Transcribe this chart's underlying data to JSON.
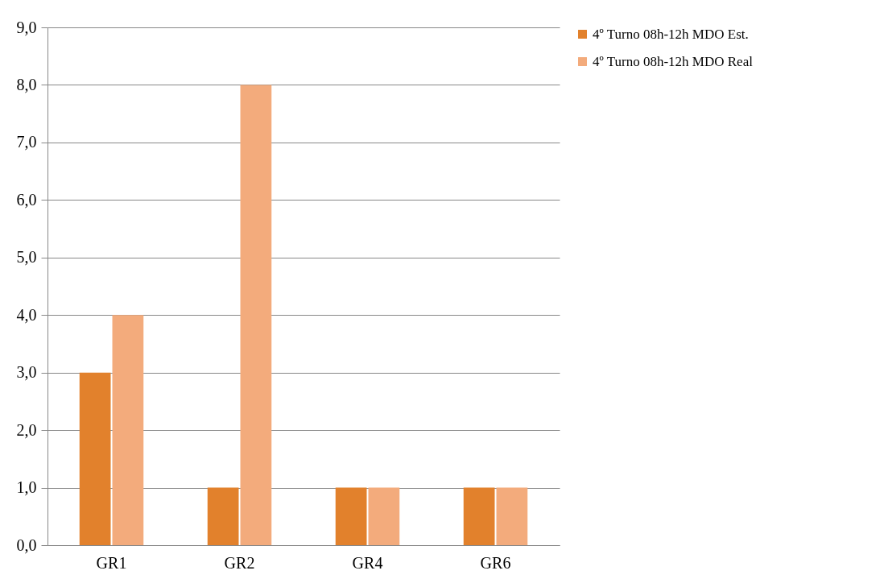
{
  "chart_data": {
    "type": "bar",
    "categories": [
      "GR1",
      "GR2",
      "GR4",
      "GR6"
    ],
    "series": [
      {
        "name": "4º Turno 08h-12h MDO Est.",
        "color": "#e2812c",
        "values": [
          3,
          1,
          1,
          1
        ]
      },
      {
        "name": "4º Turno 08h-12h MDO Real",
        "color": "#f3ab7c",
        "values": [
          4,
          8,
          1,
          1
        ]
      }
    ],
    "ylim": [
      0,
      9
    ],
    "yticks": [
      {
        "value": 0,
        "label": "0,0"
      },
      {
        "value": 1,
        "label": "1,0"
      },
      {
        "value": 2,
        "label": "2,0"
      },
      {
        "value": 3,
        "label": "3,0"
      },
      {
        "value": 4,
        "label": "4,0"
      },
      {
        "value": 5,
        "label": "5,0"
      },
      {
        "value": 6,
        "label": "6,0"
      },
      {
        "value": 7,
        "label": "7,0"
      },
      {
        "value": 8,
        "label": "8,0"
      },
      {
        "value": 9,
        "label": "9,0"
      }
    ],
    "grid": "y",
    "legend": "right"
  }
}
